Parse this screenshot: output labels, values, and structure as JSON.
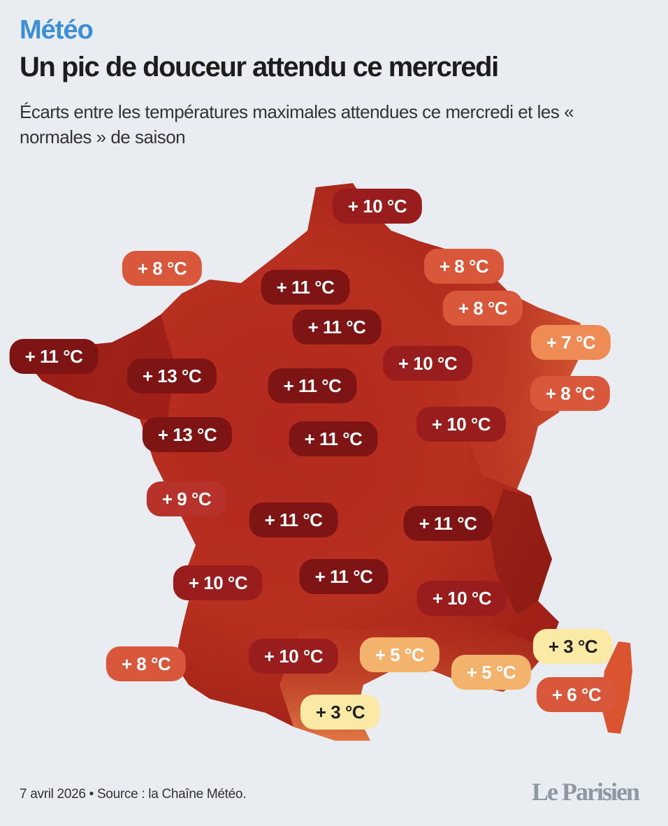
{
  "header": {
    "kicker": "Météo",
    "title": "Un pic de douceur attendu ce mercredi",
    "subtitle": "Écarts entre les températures maximales attendues ce mercredi et les « normales » de saison"
  },
  "colors": {
    "very_dark": "#7e1414",
    "dark": "#9a1d1d",
    "red": "#b8322c",
    "orange_red": "#d9583b",
    "orange": "#ef8c56",
    "peach": "#f4b36c",
    "yellow": "#fbe9a6"
  },
  "labels": [
    {
      "text": "+ 10 °C",
      "tone": "dark"
    },
    {
      "text": "+ 8 °C",
      "tone": "orange_red"
    },
    {
      "text": "+ 8 °C",
      "tone": "orange_red"
    },
    {
      "text": "+ 11 °C",
      "tone": "very_dark"
    },
    {
      "text": "+ 8 °C",
      "tone": "orange_red"
    },
    {
      "text": "+ 11 °C",
      "tone": "very_dark"
    },
    {
      "text": "+ 7 °C",
      "tone": "orange"
    },
    {
      "text": "+ 11 °C",
      "tone": "very_dark"
    },
    {
      "text": "+ 10 °C",
      "tone": "dark"
    },
    {
      "text": "+ 13 °C",
      "tone": "very_dark"
    },
    {
      "text": "+ 11 °C",
      "tone": "very_dark"
    },
    {
      "text": "+ 8 °C",
      "tone": "orange_red"
    },
    {
      "text": "+ 13 °C",
      "tone": "very_dark"
    },
    {
      "text": "+ 10 °C",
      "tone": "dark"
    },
    {
      "text": "+ 11 °C",
      "tone": "very_dark"
    },
    {
      "text": "+ 9 °C",
      "tone": "red"
    },
    {
      "text": "+ 11 °C",
      "tone": "very_dark"
    },
    {
      "text": "+ 11 °C",
      "tone": "very_dark"
    },
    {
      "text": "+ 10 °C",
      "tone": "dark"
    },
    {
      "text": "+ 11 °C",
      "tone": "very_dark"
    },
    {
      "text": "+ 10 °C",
      "tone": "dark"
    },
    {
      "text": "+ 3 °C",
      "tone": "yellow"
    },
    {
      "text": "+ 8 °C",
      "tone": "orange_red"
    },
    {
      "text": "+ 10 °C",
      "tone": "dark"
    },
    {
      "text": "+ 5 °C",
      "tone": "peach"
    },
    {
      "text": "+ 5 °C",
      "tone": "peach"
    },
    {
      "text": "+ 6 °C",
      "tone": "orange_red"
    },
    {
      "text": "+ 3 °C",
      "tone": "yellow"
    }
  ],
  "footer": {
    "text": "7 avril 2026 • Source : la Chaîne Météo.",
    "logo": "Le Parisien"
  }
}
